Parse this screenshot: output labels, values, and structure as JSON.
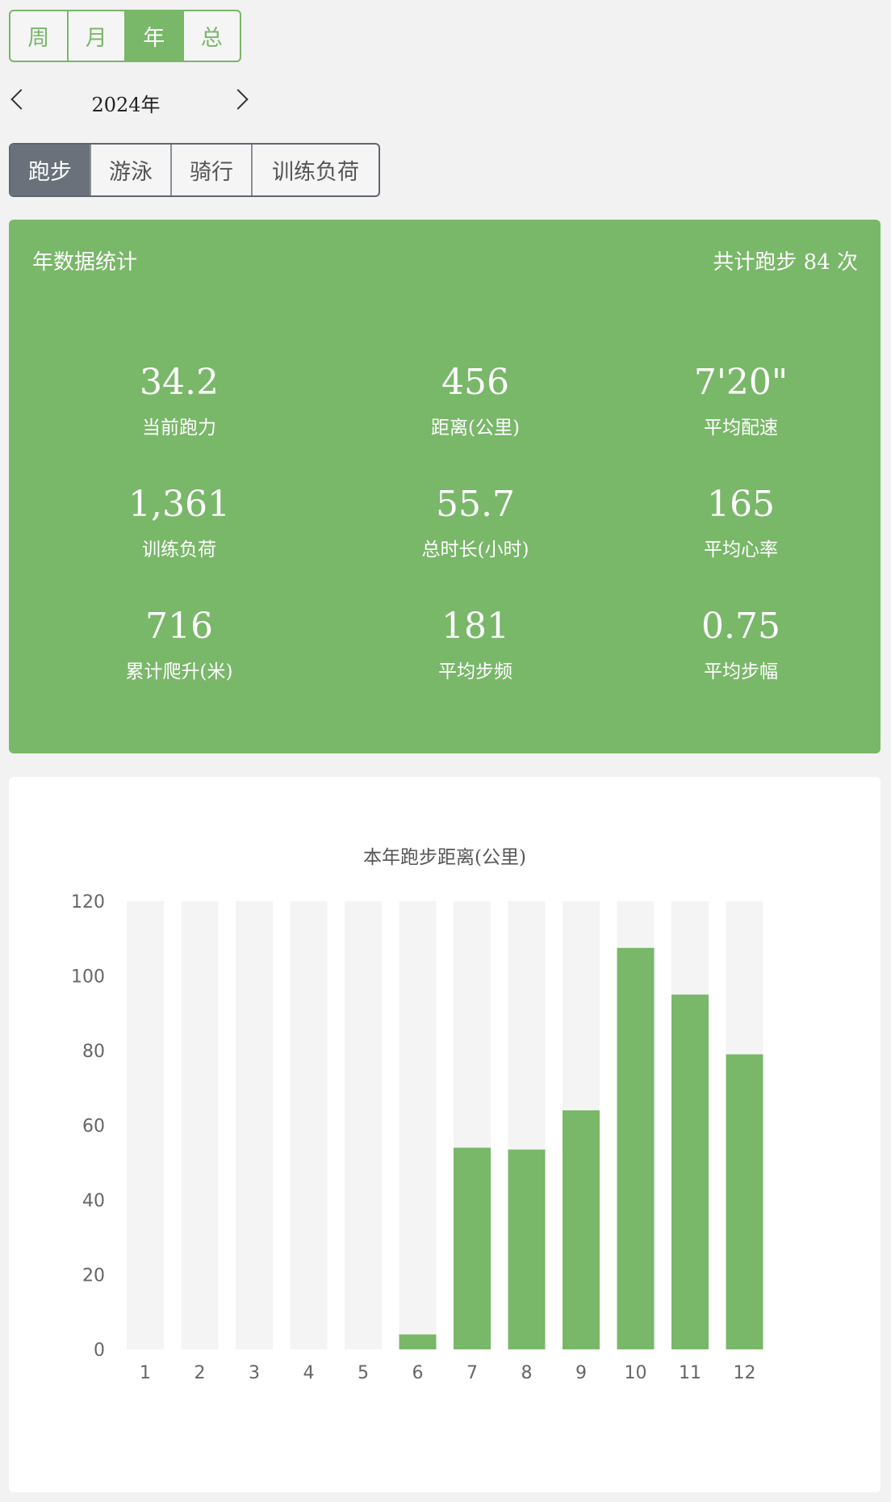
{
  "period_tabs": [
    {
      "label": "周",
      "active": false
    },
    {
      "label": "月",
      "active": false
    },
    {
      "label": "年",
      "active": true
    },
    {
      "label": "总",
      "active": false
    }
  ],
  "year_nav": {
    "label": "2024年",
    "prev_icon": "chevron-left-icon",
    "next_icon": "chevron-right-icon"
  },
  "sport_tabs": [
    {
      "label": "跑步",
      "active": true
    },
    {
      "label": "游泳",
      "active": false
    },
    {
      "label": "骑行",
      "active": false
    },
    {
      "label": "训练负荷",
      "active": false
    }
  ],
  "stats": {
    "title": "年数据统计",
    "total": "共计跑步 84 次",
    "items": [
      {
        "value": "34.2",
        "label": "当前跑力"
      },
      {
        "value": "456",
        "label": "距离(公里)"
      },
      {
        "value": "7'20\"",
        "label": "平均配速"
      },
      {
        "value": "1,361",
        "label": "训练负荷"
      },
      {
        "value": "55.7",
        "label": "总时长(小时)"
      },
      {
        "value": "165",
        "label": "平均心率"
      },
      {
        "value": "716",
        "label": "累计爬升(米)"
      },
      {
        "value": "181",
        "label": "平均步频"
      },
      {
        "value": "0.75",
        "label": "平均步幅"
      }
    ]
  },
  "colors": {
    "accent": "#79b769",
    "bar_track": "#f4f4f4",
    "sport_active": "#6a717b"
  },
  "chart_data": {
    "type": "bar",
    "title": "本年跑步距离(公里)",
    "categories": [
      "1",
      "2",
      "3",
      "4",
      "5",
      "6",
      "7",
      "8",
      "9",
      "10",
      "11",
      "12"
    ],
    "values": [
      0,
      0,
      0,
      0,
      0,
      4,
      54,
      53.5,
      64,
      107.5,
      95,
      79
    ],
    "yticks": [
      "0",
      "20",
      "40",
      "60",
      "80",
      "100",
      "120"
    ],
    "ylim": [
      0,
      120
    ],
    "xlabel": "",
    "ylabel": "",
    "grid": false,
    "background_track": true
  }
}
